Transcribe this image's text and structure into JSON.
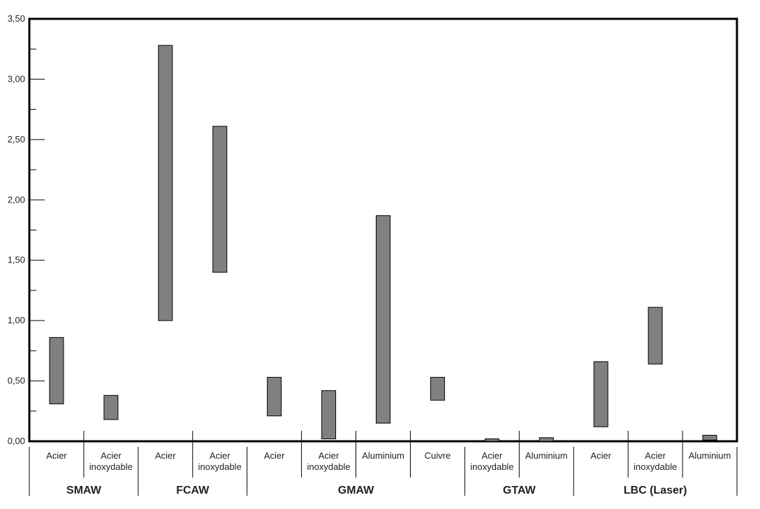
{
  "chart_data": {
    "type": "bar",
    "subtype": "floating-range",
    "ylim": [
      0,
      3.5
    ],
    "y_ticks": [
      "0,00",
      "0,50",
      "1,00",
      "1,50",
      "2,00",
      "2,50",
      "3,00",
      "3,50"
    ],
    "y_tick_values": [
      0,
      0.5,
      1.0,
      1.5,
      2.0,
      2.5,
      3.0,
      3.5
    ],
    "grid": false,
    "bar_color": "#808080",
    "groups": [
      {
        "label": "SMAW",
        "categories": [
          {
            "label": [
              "Acier"
            ],
            "low": 0.31,
            "high": 0.86
          },
          {
            "label": [
              "Acier",
              "inoxydable"
            ],
            "low": 0.18,
            "high": 0.38
          }
        ]
      },
      {
        "label": "FCAW",
        "categories": [
          {
            "label": [
              "Acier"
            ],
            "low": 1.0,
            "high": 3.28
          },
          {
            "label": [
              "Acier",
              "inoxydable"
            ],
            "low": 1.4,
            "high": 2.61
          }
        ]
      },
      {
        "label": "GMAW",
        "categories": [
          {
            "label": [
              "Acier"
            ],
            "low": 0.21,
            "high": 0.53
          },
          {
            "label": [
              "Acier",
              "inoxydable"
            ],
            "low": 0.02,
            "high": 0.42
          },
          {
            "label": [
              "Aluminium"
            ],
            "low": 0.15,
            "high": 1.87
          },
          {
            "label": [
              "Cuivre"
            ],
            "low": 0.34,
            "high": 0.53
          }
        ]
      },
      {
        "label": "GTAW",
        "categories": [
          {
            "label": [
              "Acier",
              "inoxydable"
            ],
            "low": 0.0,
            "high": 0.02
          },
          {
            "label": [
              "Aluminium"
            ],
            "low": 0.0,
            "high": 0.03
          }
        ]
      },
      {
        "label": "LBC (Laser)",
        "categories": [
          {
            "label": [
              "Acier"
            ],
            "low": 0.12,
            "high": 0.66
          },
          {
            "label": [
              "Acier",
              "inoxydable"
            ],
            "low": 0.64,
            "high": 1.11
          },
          {
            "label": [
              "Aluminium"
            ],
            "low": 0.01,
            "high": 0.05
          }
        ]
      }
    ]
  }
}
